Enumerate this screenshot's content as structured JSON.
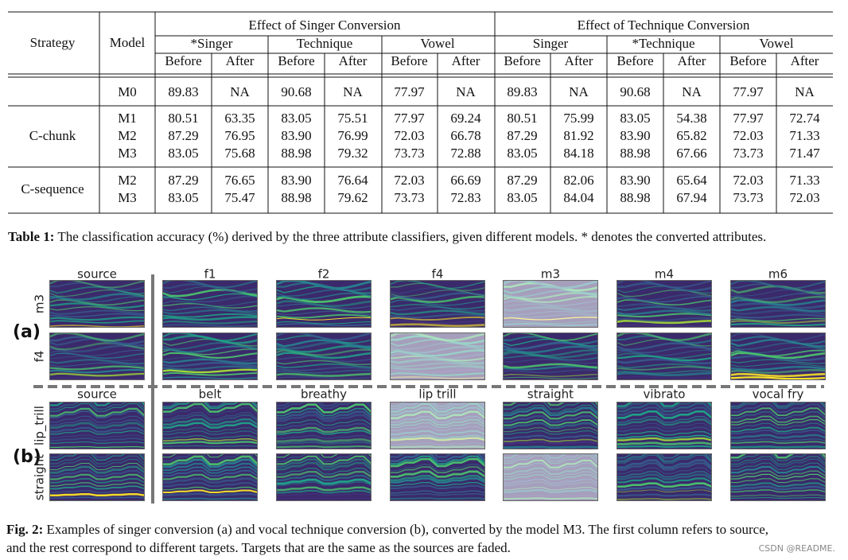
{
  "table": {
    "header": {
      "strategy": "Strategy",
      "model": "Model",
      "groups": [
        {
          "title": "Effect of Singer Conversion",
          "subs": [
            {
              "title": "*Singer",
              "cols": [
                "Before",
                "After"
              ]
            },
            {
              "title": "Technique",
              "cols": [
                "Before",
                "After"
              ]
            },
            {
              "title": "Vowel",
              "cols": [
                "Before",
                "After"
              ]
            }
          ]
        },
        {
          "title": "Effect of Technique Conversion",
          "subs": [
            {
              "title": "Singer",
              "cols": [
                "Before",
                "After"
              ]
            },
            {
              "title": "*Technique",
              "cols": [
                "Before",
                "After"
              ]
            },
            {
              "title": "Vowel",
              "cols": [
                "Before",
                "After"
              ]
            }
          ]
        }
      ]
    },
    "groups": [
      {
        "rows": [
          {
            "model": "M0",
            "values": [
              "89.83",
              "NA",
              "90.68",
              "NA",
              "77.97",
              "NA",
              "89.83",
              "NA",
              "90.68",
              "NA",
              "77.97",
              "NA"
            ]
          }
        ]
      },
      {
        "strategy": "C-chunk",
        "rows": [
          {
            "model": "M1",
            "values": [
              "80.51",
              "63.35",
              "83.05",
              "75.51",
              "77.97",
              "69.24",
              "80.51",
              "75.99",
              "83.05",
              "54.38",
              "77.97",
              "72.74"
            ]
          },
          {
            "model": "M2",
            "values": [
              "87.29",
              "76.95",
              "83.90",
              "76.99",
              "72.03",
              "66.78",
              "87.29",
              "81.92",
              "83.90",
              "65.82",
              "72.03",
              "71.33"
            ]
          },
          {
            "model": "M3",
            "values": [
              "83.05",
              "75.68",
              "88.98",
              "79.32",
              "73.73",
              "72.88",
              "83.05",
              "84.18",
              "88.98",
              "67.66",
              "73.73",
              "71.47"
            ]
          }
        ]
      },
      {
        "strategy": "C-sequence",
        "rows": [
          {
            "model": "M2",
            "values": [
              "87.29",
              "76.65",
              "83.90",
              "76.64",
              "72.03",
              "66.69",
              "87.29",
              "82.06",
              "83.90",
              "65.64",
              "72.03",
              "71.33"
            ]
          },
          {
            "model": "M3",
            "values": [
              "83.05",
              "75.47",
              "88.98",
              "79.62",
              "73.73",
              "72.83",
              "83.05",
              "84.04",
              "88.98",
              "67.94",
              "73.73",
              "72.03"
            ]
          }
        ]
      }
    ]
  },
  "table_caption": {
    "label": "Table 1:",
    "text": " The classification accuracy (%) derived by the three attribute classifiers, given different models. * denotes the converted attributes."
  },
  "figure": {
    "panels": [
      {
        "label": "(a)",
        "columns": [
          "source",
          "f1",
          "f2",
          "f4",
          "m3",
          "m4",
          "m6"
        ],
        "rows": [
          "m3",
          "f4"
        ]
      },
      {
        "label": "(b)",
        "columns": [
          "source",
          "belt",
          "breathy",
          "lip trill",
          "straight",
          "vibrato",
          "vocal fry"
        ],
        "rows": [
          "lip_trill",
          "straight"
        ]
      }
    ]
  },
  "figure_caption": {
    "label": "Fig. 2:",
    "line1": " Examples of singer conversion (a) and vocal technique conversion (b), converted by the model M3. The first column refers to source,",
    "line2": "and the rest correspond to different targets. Targets that are the same as the sources are faded."
  },
  "watermark": "CSDN @README."
}
